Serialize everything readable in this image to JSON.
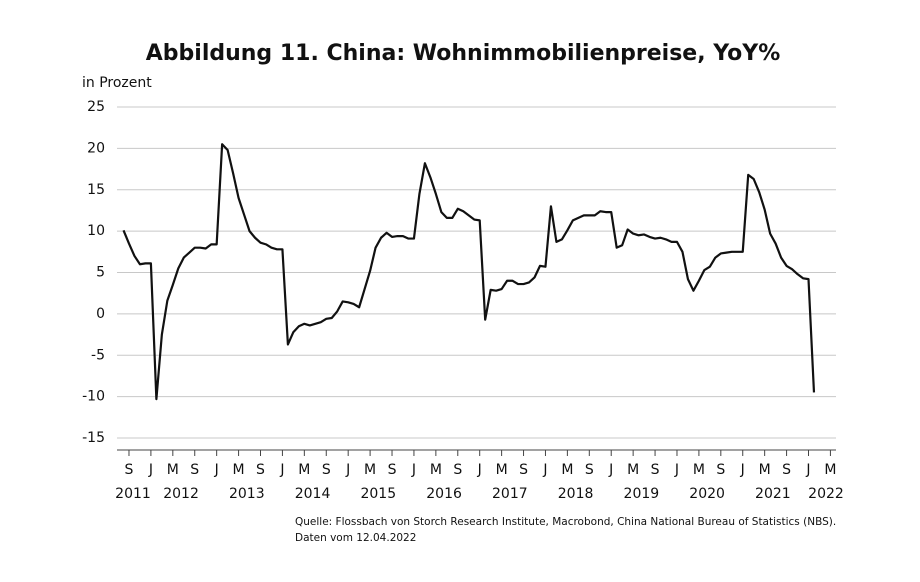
{
  "chart_data": {
    "type": "line",
    "title": "Abbildung 11. China: Wohnimmobilienpreise, YoY%",
    "y_axis_label": "in Prozent",
    "source": "Quelle: Flossbach von Storch Research Institute, Macrobond, China National Bureau of Statistics (NBS).",
    "date_note": "Daten vom 12.04.2022",
    "color": "#111111",
    "grid": true,
    "ylim": [
      -15,
      25
    ],
    "yticks": [
      -15,
      -10,
      -5,
      0,
      5,
      10,
      15,
      20,
      25
    ],
    "x": [
      "2011-08",
      "2011-09",
      "2011-10",
      "2011-11",
      "2011-12",
      "2012-01",
      "2012-02",
      "2012-03",
      "2012-04",
      "2012-05",
      "2012-06",
      "2012-07",
      "2012-08",
      "2012-09",
      "2012-10",
      "2012-11",
      "2012-12",
      "2013-01",
      "2013-02",
      "2013-03",
      "2013-04",
      "2013-05",
      "2013-06",
      "2013-07",
      "2013-08",
      "2013-09",
      "2013-10",
      "2013-11",
      "2013-12",
      "2014-01",
      "2014-02",
      "2014-03",
      "2014-04",
      "2014-05",
      "2014-06",
      "2014-07",
      "2014-08",
      "2014-09",
      "2014-10",
      "2014-11",
      "2014-12",
      "2015-01",
      "2015-02",
      "2015-03",
      "2015-04",
      "2015-05",
      "2015-06",
      "2015-07",
      "2015-08",
      "2015-09",
      "2015-10",
      "2015-11",
      "2015-12",
      "2016-01",
      "2016-02",
      "2016-03",
      "2016-04",
      "2016-05",
      "2016-06",
      "2016-07",
      "2016-08",
      "2016-09",
      "2016-10",
      "2016-11",
      "2016-12",
      "2017-01",
      "2017-02",
      "2017-03",
      "2017-04",
      "2017-05",
      "2017-06",
      "2017-07",
      "2017-08",
      "2017-09",
      "2017-10",
      "2017-11",
      "2017-12",
      "2018-01",
      "2018-02",
      "2018-03",
      "2018-04",
      "2018-05",
      "2018-06",
      "2018-07",
      "2018-08",
      "2018-09",
      "2018-10",
      "2018-11",
      "2018-12",
      "2019-01",
      "2019-02",
      "2019-03",
      "2019-04",
      "2019-05",
      "2019-06",
      "2019-07",
      "2019-08",
      "2019-09",
      "2019-10",
      "2019-11",
      "2019-12",
      "2020-01",
      "2020-02",
      "2020-03",
      "2020-04",
      "2020-05",
      "2020-06",
      "2020-07",
      "2020-08",
      "2020-09",
      "2020-10",
      "2020-11",
      "2020-12",
      "2021-01",
      "2021-02",
      "2021-03",
      "2021-04",
      "2021-05",
      "2021-06",
      "2021-07",
      "2021-08",
      "2021-09",
      "2021-10",
      "2021-11",
      "2021-12",
      "2022-01",
      "2022-02"
    ],
    "values": [
      10.1,
      8.5,
      7.0,
      6.0,
      6.1,
      6.1,
      -10.3,
      -2.5,
      1.6,
      3.5,
      5.5,
      6.8,
      7.4,
      8.0,
      8.0,
      7.9,
      8.4,
      8.4,
      20.5,
      19.8,
      17.0,
      14.0,
      12.0,
      10.0,
      9.2,
      8.6,
      8.4,
      8.0,
      7.8,
      7.8,
      -3.7,
      -2.2,
      -1.5,
      -1.2,
      -1.4,
      -1.2,
      -1.0,
      -0.6,
      -0.5,
      0.3,
      1.5,
      1.4,
      1.2,
      0.8,
      3.0,
      5.2,
      8.0,
      9.2,
      9.8,
      9.3,
      9.4,
      9.4,
      9.1,
      9.1,
      14.5,
      18.2,
      16.5,
      14.5,
      12.3,
      11.6,
      11.6,
      12.7,
      12.4,
      11.9,
      11.4,
      11.3,
      -0.7,
      2.9,
      2.8,
      3.0,
      4.0,
      4.0,
      3.6,
      3.6,
      3.8,
      4.4,
      5.8,
      5.7,
      13.0,
      8.7,
      9.0,
      10.1,
      11.3,
      11.6,
      11.9,
      11.9,
      11.9,
      12.4,
      12.3,
      12.3,
      8.0,
      8.3,
      10.2,
      9.7,
      9.5,
      9.6,
      9.3,
      9.1,
      9.2,
      9.0,
      8.7,
      8.7,
      7.5,
      4.2,
      2.8,
      4.0,
      5.3,
      5.7,
      6.8,
      7.3,
      7.4,
      7.5,
      7.5,
      7.5,
      16.8,
      16.3,
      14.7,
      12.6,
      9.7,
      8.5,
      6.8,
      5.8,
      5.4,
      4.8,
      4.3,
      4.2,
      -9.5
    ],
    "xticks": [
      {
        "value": "2011-09",
        "label": "S"
      },
      {
        "value": "2012-01",
        "label": "J"
      },
      {
        "value": "2012-05",
        "label": "M"
      },
      {
        "value": "2012-09",
        "label": "S"
      },
      {
        "value": "2013-01",
        "label": "J"
      },
      {
        "value": "2013-05",
        "label": "M"
      },
      {
        "value": "2013-09",
        "label": "S"
      },
      {
        "value": "2014-01",
        "label": "J"
      },
      {
        "value": "2014-05",
        "label": "M"
      },
      {
        "value": "2014-09",
        "label": "S"
      },
      {
        "value": "2015-01",
        "label": "J"
      },
      {
        "value": "2015-05",
        "label": "M"
      },
      {
        "value": "2015-09",
        "label": "S"
      },
      {
        "value": "2016-01",
        "label": "J"
      },
      {
        "value": "2016-05",
        "label": "M"
      },
      {
        "value": "2016-09",
        "label": "S"
      },
      {
        "value": "2017-01",
        "label": "J"
      },
      {
        "value": "2017-05",
        "label": "M"
      },
      {
        "value": "2017-09",
        "label": "S"
      },
      {
        "value": "2018-01",
        "label": "J"
      },
      {
        "value": "2018-05",
        "label": "M"
      },
      {
        "value": "2018-09",
        "label": "S"
      },
      {
        "value": "2019-01",
        "label": "J"
      },
      {
        "value": "2019-05",
        "label": "M"
      },
      {
        "value": "2019-09",
        "label": "S"
      },
      {
        "value": "2020-01",
        "label": "J"
      },
      {
        "value": "2020-05",
        "label": "M"
      },
      {
        "value": "2020-09",
        "label": "S"
      },
      {
        "value": "2021-01",
        "label": "J"
      },
      {
        "value": "2021-05",
        "label": "M"
      },
      {
        "value": "2021-09",
        "label": "S"
      },
      {
        "value": "2022-01",
        "label": "J"
      },
      {
        "value": "2022-05",
        "label": "M"
      }
    ],
    "year_labels": [
      "2011",
      "2012",
      "2013",
      "2014",
      "2015",
      "2016",
      "2017",
      "2018",
      "2019",
      "2020",
      "2021",
      "2022"
    ]
  }
}
